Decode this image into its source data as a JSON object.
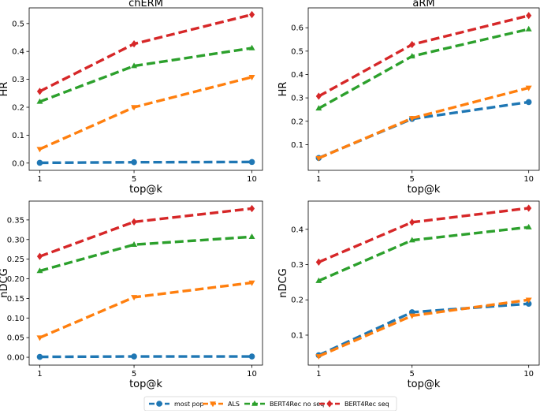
{
  "chart_data": {
    "type": "line",
    "x": [
      1,
      5,
      10
    ],
    "legend": {
      "placement": "bottom-center",
      "entries": [
        "most pop",
        "ALS",
        "BERT4Rec no seq",
        "BERT4Rec seq"
      ]
    },
    "colors": {
      "most pop": "#1f77b4",
      "ALS": "#ff7f0e",
      "BERT4Rec no seq": "#2ca02c",
      "BERT4Rec seq": "#d62728"
    },
    "markers": {
      "most pop": "circle",
      "ALS": "triangle-down",
      "BERT4Rec no seq": "triangle-up",
      "BERT4Rec seq": "diamond"
    },
    "panels": [
      {
        "title": "chERM",
        "xlabel": "top@k",
        "ylabel": "HR",
        "xlim": [
          0.55,
          10.45
        ],
        "ylim": [
          -0.026,
          0.556
        ],
        "yticks": [
          0.0,
          0.1,
          0.2,
          0.3,
          0.4,
          0.5
        ],
        "ytick_labels": [
          "0.0",
          "0.1",
          "0.2",
          "0.3",
          "0.4",
          "0.5"
        ],
        "xticks": [
          1,
          5,
          10
        ],
        "xtick_labels": [
          "1",
          "5",
          "10"
        ],
        "series": [
          {
            "name": "most pop",
            "values": [
              0.001,
              0.003,
              0.004
            ]
          },
          {
            "name": "ALS",
            "values": [
              0.05,
              0.2,
              0.308
            ]
          },
          {
            "name": "BERT4Rec no seq",
            "values": [
              0.22,
              0.348,
              0.412
            ]
          },
          {
            "name": "BERT4Rec seq",
            "values": [
              0.257,
              0.427,
              0.532
            ]
          }
        ]
      },
      {
        "title": "aRM",
        "xlabel": "top@k",
        "ylabel": "HR",
        "xlim": [
          0.55,
          10.45
        ],
        "ylim": [
          -0.01,
          0.685
        ],
        "yticks": [
          0.1,
          0.2,
          0.3,
          0.4,
          0.5,
          0.6
        ],
        "ytick_labels": [
          "0.1",
          "0.2",
          "0.3",
          "0.4",
          "0.5",
          "0.6"
        ],
        "xticks": [
          1,
          5,
          10
        ],
        "xtick_labels": [
          "1",
          "5",
          "10"
        ],
        "series": [
          {
            "name": "most pop",
            "values": [
              0.043,
              0.21,
              0.282
            ]
          },
          {
            "name": "ALS",
            "values": [
              0.042,
              0.213,
              0.343
            ]
          },
          {
            "name": "BERT4Rec no seq",
            "values": [
              0.255,
              0.478,
              0.594
            ]
          },
          {
            "name": "BERT4Rec seq",
            "values": [
              0.307,
              0.528,
              0.652
            ]
          }
        ]
      },
      {
        "title": "",
        "xlabel": "top@k",
        "ylabel": "nDCG",
        "xlim": [
          0.55,
          10.45
        ],
        "ylim": [
          -0.02,
          0.398
        ],
        "yticks": [
          0.0,
          0.05,
          0.1,
          0.15,
          0.2,
          0.25,
          0.3,
          0.35
        ],
        "ytick_labels": [
          "0.00",
          "0.05",
          "0.10",
          "0.15",
          "0.20",
          "0.25",
          "0.30",
          "0.35"
        ],
        "xticks": [
          1,
          5,
          10
        ],
        "xtick_labels": [
          "1",
          "5",
          "10"
        ],
        "series": [
          {
            "name": "most pop",
            "values": [
              0.001,
              0.002,
              0.002
            ]
          },
          {
            "name": "ALS",
            "values": [
              0.05,
              0.153,
              0.19
            ]
          },
          {
            "name": "BERT4Rec no seq",
            "values": [
              0.22,
              0.287,
              0.307
            ]
          },
          {
            "name": "BERT4Rec seq",
            "values": [
              0.257,
              0.345,
              0.379
            ]
          }
        ]
      },
      {
        "title": "",
        "xlabel": "top@k",
        "ylabel": "nDCG",
        "xlim": [
          0.55,
          10.45
        ],
        "ylim": [
          0.015,
          0.48
        ],
        "yticks": [
          0.1,
          0.2,
          0.3,
          0.4
        ],
        "ytick_labels": [
          "0.1",
          "0.2",
          "0.3",
          "0.4"
        ],
        "xticks": [
          1,
          5,
          10
        ],
        "xtick_labels": [
          "1",
          "5",
          "10"
        ],
        "series": [
          {
            "name": "most pop",
            "values": [
              0.043,
              0.165,
              0.189
            ]
          },
          {
            "name": "ALS",
            "values": [
              0.04,
              0.155,
              0.2
            ]
          },
          {
            "name": "BERT4Rec no seq",
            "values": [
              0.254,
              0.369,
              0.406
            ]
          },
          {
            "name": "BERT4Rec seq",
            "values": [
              0.307,
              0.42,
              0.46
            ]
          }
        ]
      }
    ]
  }
}
